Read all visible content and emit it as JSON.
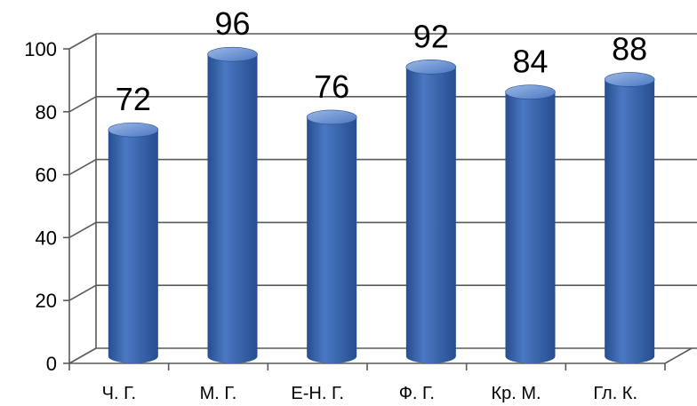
{
  "chart_data": {
    "type": "bar",
    "categories": [
      "Ч. Г.",
      "М. Г.",
      "Е-Н. Г.",
      "Ф. Г.",
      "Кр. М.",
      "Гл. К."
    ],
    "values": [
      72,
      96,
      76,
      92,
      84,
      88
    ],
    "ylim": [
      0,
      100
    ],
    "yticks": [
      "0",
      "20",
      "40",
      "60",
      "80",
      "100"
    ],
    "data_labels": [
      "72",
      "96",
      "76",
      "92",
      "84",
      "88"
    ],
    "grid": true,
    "legend": "none",
    "style": "3d-cylinder",
    "bar_color": "#4A78C2",
    "bar_dark": "#264E8F",
    "bar_light": "#9DB8E6",
    "grid_color": "#595959"
  }
}
